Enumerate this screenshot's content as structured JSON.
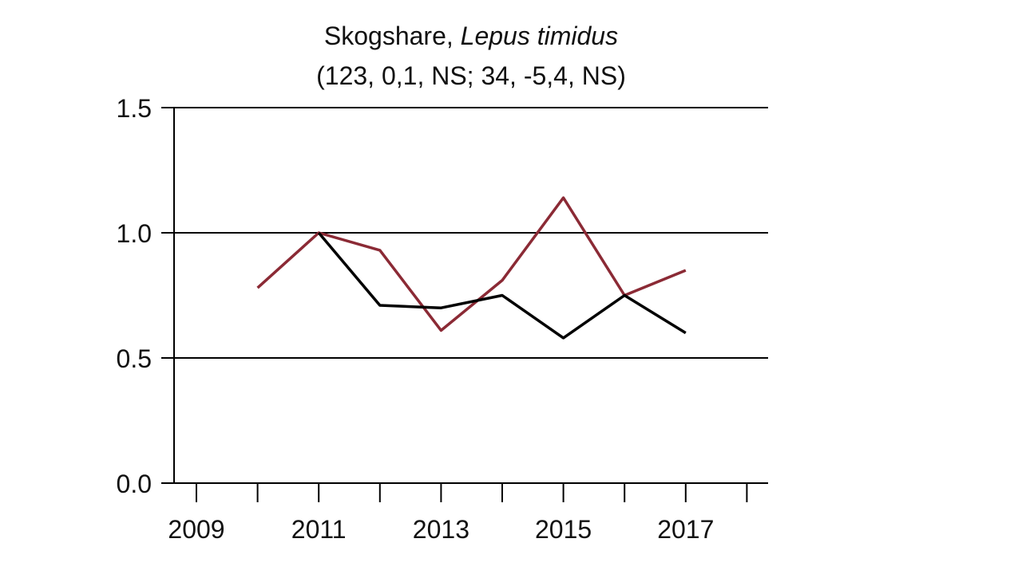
{
  "chart_data": {
    "type": "line",
    "title": "Skogshare, ",
    "title_italic": "Lepus timidus",
    "subtitle": "(123, 0,1, NS; 34, -5,4, NS)",
    "xlabel": "",
    "ylabel": "",
    "xlim": [
      2008.2,
      2018
    ],
    "ylim": [
      0,
      1.5
    ],
    "x_ticks": [
      2009,
      2010,
      2011,
      2012,
      2013,
      2014,
      2015,
      2016,
      2017,
      2018
    ],
    "x_tick_labels": [
      "2009",
      "2011",
      "2013",
      "2015",
      "2017"
    ],
    "y_tick_labels": [
      "0.0",
      "0.5",
      "1.0",
      "1.5"
    ],
    "grid": true,
    "series": [
      {
        "name": "red",
        "color": "#8b2a35",
        "x": [
          2010,
          2011,
          2012,
          2013,
          2014,
          2015,
          2016,
          2017
        ],
        "values": [
          0.78,
          1.0,
          0.93,
          0.61,
          0.81,
          1.14,
          0.75,
          0.85
        ]
      },
      {
        "name": "black",
        "color": "#000000",
        "x": [
          2011,
          2012,
          2013,
          2014,
          2015,
          2016,
          2017
        ],
        "values": [
          1.0,
          0.71,
          0.7,
          0.75,
          0.58,
          0.75,
          0.6
        ]
      }
    ]
  }
}
